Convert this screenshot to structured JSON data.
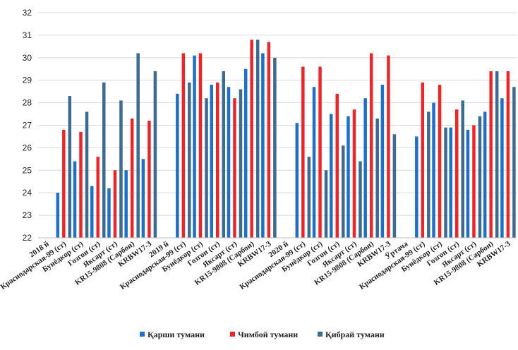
{
  "chart_data": {
    "type": "bar",
    "ylim": [
      22,
      32
    ],
    "y_ticks": [
      "22",
      "23",
      "24",
      "25",
      "26",
      "27",
      "28",
      "29",
      "30",
      "31",
      "32"
    ],
    "grid": true,
    "legend_position": "bottom",
    "categories": [
      "2018 й",
      "Краснодарская-99 (ст)",
      "Бунёдкор (ст)",
      "Гозгон (ст)",
      "Яксарт (ст)",
      "KR15-9808 (Сарбон)",
      "KRBW17-3",
      "2019 й",
      "Краснодарская-99 (ст)",
      "Бунёдкор (ст)",
      "Гозгон (ст)",
      "Яксарт (ст)",
      "KR15-9808 (Сарбон)",
      "KRBW17-3",
      "2020 й",
      "Краснодарская-99 (ст)",
      "Бунёдкор (ст)",
      "Гозгон (ст)",
      "Яксарт (ст)",
      "KR15-9808 (Сарбон)",
      "KRBW17-3",
      "Ўртача",
      "Краснодарская-99 (ст)",
      "Бунёдкор (ст)",
      "Гозгон (ст)",
      "Яксарт (ст)",
      "KR15-9808 (Сарбон)",
      "KRBW17-3"
    ],
    "series": [
      {
        "name": "Қарши тумани",
        "color": "#1f6fc5",
        "values": [
          null,
          24.0,
          25.4,
          24.3,
          24.2,
          25.0,
          25.5,
          null,
          28.4,
          30.1,
          28.8,
          28.7,
          29.5,
          30.2,
          null,
          27.1,
          28.7,
          27.5,
          27.4,
          28.2,
          28.8,
          null,
          26.5,
          28.0,
          26.9,
          26.8,
          27.6,
          28.2
        ]
      },
      {
        "name": "Чимбой тумани",
        "color": "#e8272a",
        "values": [
          null,
          26.8,
          26.7,
          25.6,
          25.0,
          27.3,
          27.2,
          null,
          30.2,
          30.2,
          28.9,
          28.2,
          30.8,
          30.7,
          null,
          29.6,
          29.6,
          28.4,
          27.7,
          30.2,
          30.1,
          null,
          28.9,
          28.8,
          27.7,
          27.0,
          29.4,
          29.4
        ]
      },
      {
        "name": "Қибрай тумани",
        "color": "#3d6a8f",
        "values": [
          null,
          28.3,
          27.6,
          28.9,
          28.1,
          30.2,
          29.4,
          null,
          28.9,
          28.2,
          29.4,
          28.6,
          30.8,
          30.0,
          null,
          25.6,
          25.0,
          26.1,
          25.4,
          27.3,
          26.6,
          null,
          27.6,
          26.9,
          28.1,
          27.4,
          29.4,
          28.7
        ]
      }
    ]
  }
}
